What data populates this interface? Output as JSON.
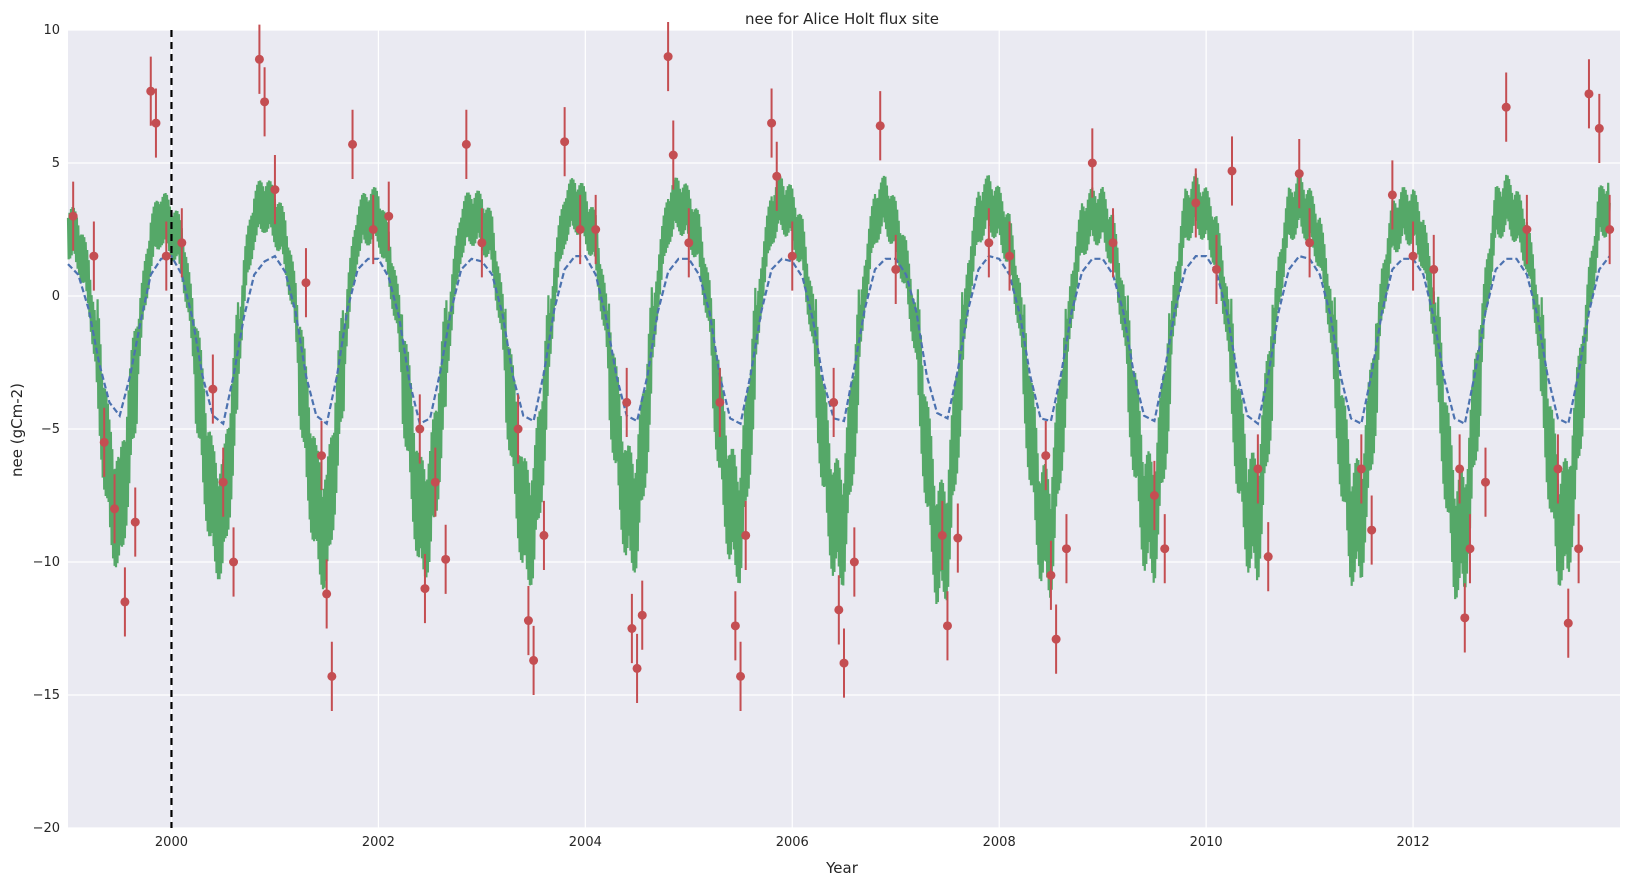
{
  "chart_data": {
    "type": "line",
    "title": "nee for Alice Holt flux site",
    "xlabel": "Year",
    "ylabel": "nee (gCm-2)",
    "xlim": [
      1999.0,
      2014.0
    ],
    "ylim": [
      -20,
      10
    ],
    "x_ticks": [
      "2000",
      "2002",
      "2004",
      "2006",
      "2008",
      "2010",
      "2012"
    ],
    "y_ticks": [
      "−20",
      "−15",
      "−10",
      "−5",
      "0",
      "5",
      "10"
    ],
    "grid": true,
    "legend": "none",
    "vline": {
      "x": 2000.0,
      "style": "dashed"
    },
    "colors": {
      "background": "#EAEAF2",
      "grid": "#FFFFFF",
      "blue_series": "#4C72B0",
      "green_series": "#55A868",
      "red_series": "#C44E52",
      "vline": "#000000"
    },
    "series": [
      {
        "style": "dashed-line",
        "color": "#4C72B0",
        "x": [
          1999.0,
          1999.1,
          1999.2,
          1999.3,
          1999.4,
          1999.5,
          1999.6,
          1999.7,
          1999.8,
          1999.9,
          2000.0,
          2000.1,
          2000.2,
          2000.3,
          2000.4,
          2000.5,
          2000.6,
          2000.7,
          2000.8,
          2000.9,
          2001.0,
          2001.1,
          2001.2,
          2001.3,
          2001.4,
          2001.5,
          2001.6,
          2001.7,
          2001.8,
          2001.9,
          2002.0,
          2002.1,
          2002.2,
          2002.3,
          2002.4,
          2002.5,
          2002.6,
          2002.7,
          2002.8,
          2002.9,
          2003.0,
          2003.1,
          2003.2,
          2003.3,
          2003.4,
          2003.5,
          2003.6,
          2003.7,
          2003.8,
          2003.9,
          2004.0,
          2004.1,
          2004.2,
          2004.3,
          2004.4,
          2004.5,
          2004.6,
          2004.7,
          2004.8,
          2004.9,
          2005.0,
          2005.1,
          2005.2,
          2005.3,
          2005.4,
          2005.5,
          2005.6,
          2005.7,
          2005.8,
          2005.9,
          2006.0,
          2006.1,
          2006.2,
          2006.3,
          2006.4,
          2006.5,
          2006.6,
          2006.7,
          2006.8,
          2006.9,
          2007.0,
          2007.1,
          2007.2,
          2007.3,
          2007.4,
          2007.5,
          2007.6,
          2007.7,
          2007.8,
          2007.9,
          2008.0,
          2008.1,
          2008.2,
          2008.3,
          2008.4,
          2008.5,
          2008.6,
          2008.7,
          2008.8,
          2008.9,
          2009.0,
          2009.1,
          2009.2,
          2009.3,
          2009.4,
          2009.5,
          2009.6,
          2009.7,
          2009.8,
          2009.9,
          2010.0,
          2010.1,
          2010.2,
          2010.3,
          2010.4,
          2010.5,
          2010.6,
          2010.7,
          2010.8,
          2010.9,
          2011.0,
          2011.1,
          2011.2,
          2011.3,
          2011.4,
          2011.5,
          2011.6,
          2011.7,
          2011.8,
          2011.9,
          2012.0,
          2012.1,
          2012.2,
          2012.3,
          2012.4,
          2012.5,
          2012.6,
          2012.7,
          2012.8,
          2012.9,
          2013.0,
          2013.1,
          2013.2,
          2013.3,
          2013.4,
          2013.5,
          2013.6,
          2013.7,
          2013.8,
          2013.9
        ],
        "y": [
          1.2,
          0.8,
          -0.5,
          -2.5,
          -4.0,
          -4.5,
          -3.0,
          -1.0,
          0.8,
          1.4,
          1.5,
          0.8,
          -0.8,
          -3.0,
          -4.5,
          -4.8,
          -3.0,
          -0.8,
          0.8,
          1.3,
          1.5,
          0.9,
          -0.6,
          -3.0,
          -4.5,
          -4.8,
          -3.0,
          -0.5,
          1.0,
          1.4,
          1.4,
          0.7,
          -0.8,
          -3.2,
          -4.8,
          -4.6,
          -2.8,
          -0.6,
          1.0,
          1.4,
          1.3,
          0.8,
          -0.7,
          -3.0,
          -4.5,
          -4.7,
          -2.9,
          -0.5,
          1.0,
          1.5,
          1.5,
          0.8,
          -0.8,
          -3.0,
          -4.5,
          -4.7,
          -3.0,
          -0.6,
          0.9,
          1.4,
          1.4,
          0.8,
          -0.6,
          -3.0,
          -4.6,
          -4.8,
          -2.9,
          -0.6,
          1.0,
          1.4,
          1.3,
          0.7,
          -0.9,
          -3.2,
          -4.6,
          -4.7,
          -2.7,
          -0.5,
          1.0,
          1.4,
          1.4,
          0.8,
          -0.6,
          -3.0,
          -4.4,
          -4.6,
          -2.8,
          -0.5,
          1.0,
          1.5,
          1.4,
          0.8,
          -0.7,
          -3.0,
          -4.6,
          -4.7,
          -2.9,
          -0.6,
          0.9,
          1.4,
          1.4,
          0.8,
          -0.6,
          -2.9,
          -4.5,
          -4.7,
          -2.8,
          -0.5,
          1.0,
          1.5,
          1.5,
          0.9,
          -0.6,
          -2.9,
          -4.5,
          -4.8,
          -3.0,
          -0.6,
          1.0,
          1.5,
          1.4,
          0.8,
          -0.7,
          -3.0,
          -4.6,
          -4.8,
          -2.9,
          -0.6,
          1.0,
          1.4,
          1.4,
          0.8,
          -0.8,
          -3.1,
          -4.6,
          -4.8,
          -2.9,
          -0.6,
          1.0,
          1.4,
          1.4,
          0.8,
          -0.7,
          -3.0,
          -4.6,
          -4.8,
          -2.9,
          -0.6,
          1.0,
          1.5
        ]
      },
      {
        "style": "noisy-line",
        "color": "#55A868",
        "x": [
          1999.0,
          1999.1,
          1999.2,
          1999.3,
          1999.4,
          1999.5,
          1999.6,
          1999.7,
          1999.8,
          1999.9,
          2000.0,
          2000.1,
          2000.2,
          2000.3,
          2000.4,
          2000.5,
          2000.6,
          2000.7,
          2000.8,
          2000.9,
          2001.0,
          2001.1,
          2001.2,
          2001.3,
          2001.4,
          2001.5,
          2001.6,
          2001.7,
          2001.8,
          2001.9,
          2002.0,
          2002.1,
          2002.2,
          2002.3,
          2002.4,
          2002.5,
          2002.6,
          2002.7,
          2002.8,
          2002.9,
          2003.0,
          2003.1,
          2003.2,
          2003.3,
          2003.4,
          2003.5,
          2003.6,
          2003.7,
          2003.8,
          2003.9,
          2004.0,
          2004.1,
          2004.2,
          2004.3,
          2004.4,
          2004.5,
          2004.6,
          2004.7,
          2004.8,
          2004.9,
          2005.0,
          2005.1,
          2005.2,
          2005.3,
          2005.4,
          2005.5,
          2005.6,
          2005.7,
          2005.8,
          2005.9,
          2006.0,
          2006.1,
          2006.2,
          2006.3,
          2006.4,
          2006.5,
          2006.6,
          2006.7,
          2006.8,
          2006.9,
          2007.0,
          2007.1,
          2007.2,
          2007.3,
          2007.4,
          2007.5,
          2007.6,
          2007.7,
          2007.8,
          2007.9,
          2008.0,
          2008.1,
          2008.2,
          2008.3,
          2008.4,
          2008.5,
          2008.6,
          2008.7,
          2008.8,
          2008.9,
          2009.0,
          2009.1,
          2009.2,
          2009.3,
          2009.4,
          2009.5,
          2009.6,
          2009.7,
          2009.8,
          2009.9,
          2010.0,
          2010.1,
          2010.2,
          2010.3,
          2010.4,
          2010.5,
          2010.6,
          2010.7,
          2010.8,
          2010.9,
          2011.0,
          2011.1,
          2011.2,
          2011.3,
          2011.4,
          2011.5,
          2011.6,
          2011.7,
          2011.8,
          2011.9,
          2012.0,
          2012.1,
          2012.2,
          2012.3,
          2012.4,
          2012.5,
          2012.6,
          2012.7,
          2012.8,
          2012.9,
          2013.0,
          2013.1,
          2013.2,
          2013.3,
          2013.4,
          2013.5,
          2013.6,
          2013.7,
          2013.8,
          2013.9
        ],
        "y": [
          2.5,
          2.0,
          0.5,
          -3.0,
          -7.0,
          -8.5,
          -5.0,
          -1.0,
          2.0,
          3.0,
          2.5,
          1.8,
          -1.0,
          -5.0,
          -8.0,
          -8.5,
          -4.5,
          0.5,
          3.0,
          3.5,
          3.0,
          2.0,
          -0.5,
          -5.0,
          -8.0,
          -9.0,
          -5.0,
          -0.5,
          2.5,
          3.0,
          3.0,
          1.5,
          -1.0,
          -5.0,
          -8.5,
          -8.0,
          -4.5,
          -0.5,
          2.5,
          3.0,
          2.8,
          2.0,
          -1.0,
          -5.0,
          -8.5,
          -8.5,
          -4.5,
          0.5,
          3.0,
          3.5,
          3.0,
          2.0,
          -1.0,
          -5.0,
          -8.0,
          -8.0,
          -4.0,
          0.5,
          3.0,
          3.5,
          3.0,
          2.0,
          -0.5,
          -5.0,
          -8.0,
          -8.5,
          -4.0,
          0.5,
          3.0,
          3.5,
          3.0,
          1.8,
          -1.0,
          -5.5,
          -8.5,
          -8.5,
          -4.0,
          0.5,
          3.0,
          3.5,
          2.5,
          1.0,
          -1.5,
          -6.0,
          -9.5,
          -9.0,
          -4.0,
          0.5,
          3.0,
          3.5,
          3.0,
          2.0,
          -0.5,
          -5.0,
          -8.5,
          -9.0,
          -4.5,
          0.0,
          2.5,
          3.0,
          3.0,
          2.0,
          -0.5,
          -4.5,
          -8.0,
          -8.5,
          -4.5,
          0.0,
          3.0,
          3.5,
          3.0,
          2.0,
          -0.5,
          -5.0,
          -8.0,
          -8.5,
          -4.0,
          0.5,
          3.0,
          3.5,
          3.0,
          2.0,
          -0.5,
          -5.0,
          -8.5,
          -8.5,
          -4.5,
          0.0,
          2.5,
          3.0,
          3.0,
          2.0,
          -0.5,
          -5.0,
          -9.0,
          -9.0,
          -4.5,
          0.0,
          3.0,
          3.5,
          3.0,
          2.0,
          -0.5,
          -5.0,
          -8.5,
          -8.5,
          -4.5,
          0.0,
          3.0,
          3.5
        ]
      },
      {
        "style": "markers-with-errorbars",
        "color": "#C44E52",
        "x": [
          1999.05,
          1999.25,
          1999.35,
          1999.45,
          1999.55,
          1999.65,
          1999.8,
          1999.85,
          1999.95,
          2000.1,
          2000.4,
          2000.5,
          2000.6,
          2000.85,
          2000.9,
          2001.0,
          2001.3,
          2001.45,
          2001.5,
          2001.55,
          2001.75,
          2001.95,
          2002.1,
          2002.4,
          2002.45,
          2002.55,
          2002.65,
          2002.85,
          2003.0,
          2003.35,
          2003.45,
          2003.5,
          2003.6,
          2003.8,
          2003.95,
          2004.1,
          2004.4,
          2004.45,
          2004.5,
          2004.55,
          2004.8,
          2004.85,
          2005.0,
          2005.3,
          2005.45,
          2005.5,
          2005.55,
          2005.8,
          2005.85,
          2006.0,
          2006.4,
          2006.45,
          2006.5,
          2006.6,
          2006.85,
          2007.0,
          2007.45,
          2007.5,
          2007.6,
          2007.9,
          2008.1,
          2008.45,
          2008.5,
          2008.55,
          2008.65,
          2008.9,
          2009.1,
          2009.5,
          2009.6,
          2009.9,
          2010.1,
          2010.25,
          2010.5,
          2010.6,
          2010.9,
          2011.0,
          2011.5,
          2011.6,
          2011.8,
          2012.0,
          2012.2,
          2012.45,
          2012.5,
          2012.55,
          2012.7,
          2012.9,
          2013.1,
          2013.4,
          2013.5,
          2013.6,
          2013.7,
          2013.8,
          2013.9
        ],
        "y": [
          3.0,
          1.5,
          -5.5,
          -8.0,
          -11.5,
          -8.5,
          7.7,
          6.5,
          1.5,
          2.0,
          -3.5,
          -7.0,
          -10.0,
          8.9,
          7.3,
          4.0,
          0.5,
          -6.0,
          -11.2,
          -14.3,
          5.7,
          2.5,
          3.0,
          -5.0,
          -11.0,
          -7.0,
          -9.9,
          5.7,
          2.0,
          -5.0,
          -12.2,
          -13.7,
          -9.0,
          5.8,
          2.5,
          2.5,
          -4.0,
          -12.5,
          -14.0,
          -12.0,
          9.0,
          5.3,
          2.0,
          -4.0,
          -12.4,
          -14.3,
          -9.0,
          6.5,
          4.5,
          1.5,
          -4.0,
          -11.8,
          -13.8,
          -10.0,
          6.4,
          1.0,
          -9.0,
          -12.4,
          -9.1,
          2.0,
          1.5,
          -6.0,
          -10.5,
          -12.9,
          -9.5,
          5.0,
          2.0,
          -7.5,
          -9.5,
          3.5,
          1.0,
          4.7,
          -6.5,
          -9.8,
          4.6,
          2.0,
          -6.5,
          -8.8,
          3.8,
          1.5,
          1.0,
          -6.5,
          -12.1,
          -9.5,
          -7.0,
          7.1,
          2.5,
          -6.5,
          -12.3,
          -9.5,
          7.6,
          6.3,
          2.5
        ],
        "error": 1.3
      }
    ]
  }
}
